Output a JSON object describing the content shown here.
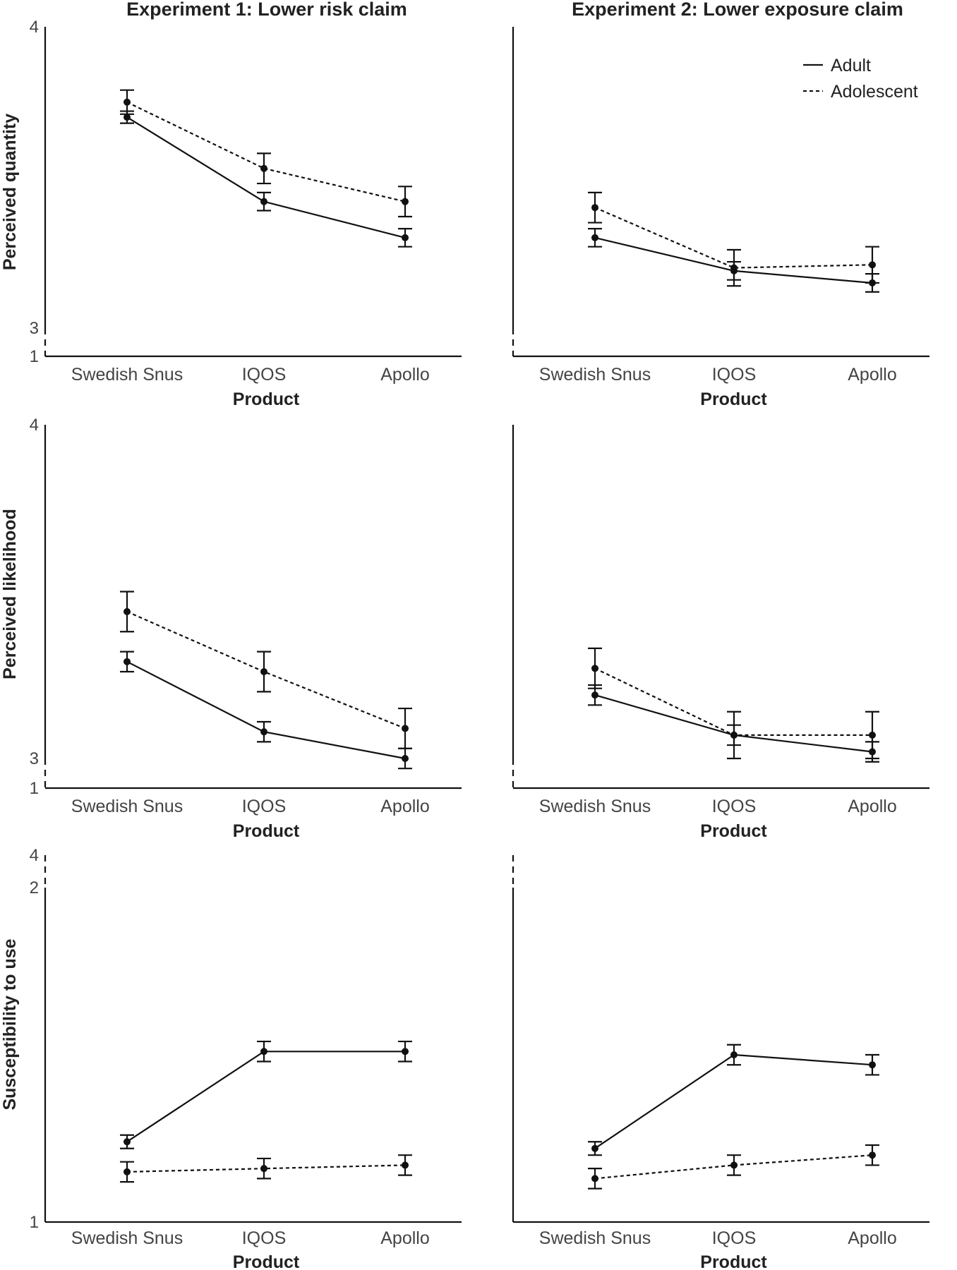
{
  "columns": [
    "Experiment 1: Lower risk claim",
    "Experiment 2: Lower exposure claim"
  ],
  "rows": [
    "Perceived quantity",
    "Perceived likelihood",
    "Susceptibility to use"
  ],
  "xlabel": "Product",
  "legend": [
    "Adult",
    "Adolescent"
  ],
  "chart_data": [
    {
      "type": "line",
      "panel": "row1-col1",
      "title": "Experiment 1: Lower risk claim",
      "xlabel": "Product",
      "ylabel": "Perceived quantity",
      "categories": [
        "Swedish Snus",
        "IQOS",
        "Apollo"
      ],
      "yticks": [
        "1",
        "3",
        "4"
      ],
      "axis_break": "1 to 3",
      "ylim": [
        3,
        4
      ],
      "series": [
        {
          "name": "Adult",
          "values": [
            3.7,
            3.42,
            3.3
          ],
          "error": [
            0.02,
            0.03,
            0.03
          ]
        },
        {
          "name": "Adolescent",
          "values": [
            3.75,
            3.53,
            3.42
          ],
          "error": [
            0.04,
            0.05,
            0.05
          ]
        }
      ]
    },
    {
      "type": "line",
      "panel": "row1-col2",
      "title": "Experiment 2: Lower exposure claim",
      "xlabel": "Product",
      "ylabel": "",
      "categories": [
        "Swedish Snus",
        "IQOS",
        "Apollo"
      ],
      "yticks": [],
      "axis_break": "1 to 3",
      "ylim": [
        3,
        4
      ],
      "series": [
        {
          "name": "Adult",
          "values": [
            3.3,
            3.19,
            3.15
          ],
          "error": [
            0.03,
            0.03,
            0.03
          ]
        },
        {
          "name": "Adolescent",
          "values": [
            3.4,
            3.2,
            3.21
          ],
          "error": [
            0.05,
            0.06,
            0.06
          ]
        }
      ]
    },
    {
      "type": "line",
      "panel": "row2-col1",
      "title": "",
      "xlabel": "Product",
      "ylabel": "Perceived likelihood",
      "categories": [
        "Swedish Snus",
        "IQOS",
        "Apollo"
      ],
      "yticks": [
        "1",
        "3",
        "4"
      ],
      "axis_break": "1 to 3",
      "ylim": [
        3,
        4
      ],
      "series": [
        {
          "name": "Adult",
          "values": [
            3.29,
            3.08,
            3.0
          ],
          "error": [
            0.03,
            0.03,
            0.03
          ]
        },
        {
          "name": "Adolescent",
          "values": [
            3.44,
            3.26,
            3.09
          ],
          "error": [
            0.06,
            0.06,
            0.06
          ]
        }
      ]
    },
    {
      "type": "line",
      "panel": "row2-col2",
      "title": "",
      "xlabel": "Product",
      "ylabel": "",
      "categories": [
        "Swedish Snus",
        "IQOS",
        "Apollo"
      ],
      "yticks": [],
      "axis_break": "1 to 3",
      "ylim": [
        3,
        4
      ],
      "series": [
        {
          "name": "Adult",
          "values": [
            3.19,
            3.07,
            3.02
          ],
          "error": [
            0.03,
            0.03,
            0.03
          ]
        },
        {
          "name": "Adolescent",
          "values": [
            3.27,
            3.07,
            3.07
          ],
          "error": [
            0.06,
            0.07,
            0.07
          ]
        }
      ]
    },
    {
      "type": "line",
      "panel": "row3-col1",
      "title": "",
      "xlabel": "Product",
      "ylabel": "Susceptibility to use",
      "categories": [
        "Swedish Snus",
        "IQOS",
        "Apollo"
      ],
      "yticks": [
        "1",
        "2",
        "4"
      ],
      "axis_break": "2 to 4",
      "ylim": [
        1,
        2
      ],
      "series": [
        {
          "name": "Adult",
          "values": [
            1.24,
            1.51,
            1.51
          ],
          "error": [
            0.02,
            0.03,
            0.03
          ]
        },
        {
          "name": "Adolescent",
          "values": [
            1.15,
            1.16,
            1.17
          ],
          "error": [
            0.03,
            0.03,
            0.03
          ]
        }
      ]
    },
    {
      "type": "line",
      "panel": "row3-col2",
      "title": "",
      "xlabel": "Product",
      "ylabel": "",
      "categories": [
        "Swedish Snus",
        "IQOS",
        "Apollo"
      ],
      "yticks": [],
      "axis_break": "2 to 4",
      "ylim": [
        1,
        2
      ],
      "series": [
        {
          "name": "Adult",
          "values": [
            1.22,
            1.5,
            1.47
          ],
          "error": [
            0.02,
            0.03,
            0.03
          ]
        },
        {
          "name": "Adolescent",
          "values": [
            1.13,
            1.17,
            1.2
          ],
          "error": [
            0.03,
            0.03,
            0.03
          ]
        }
      ]
    }
  ]
}
